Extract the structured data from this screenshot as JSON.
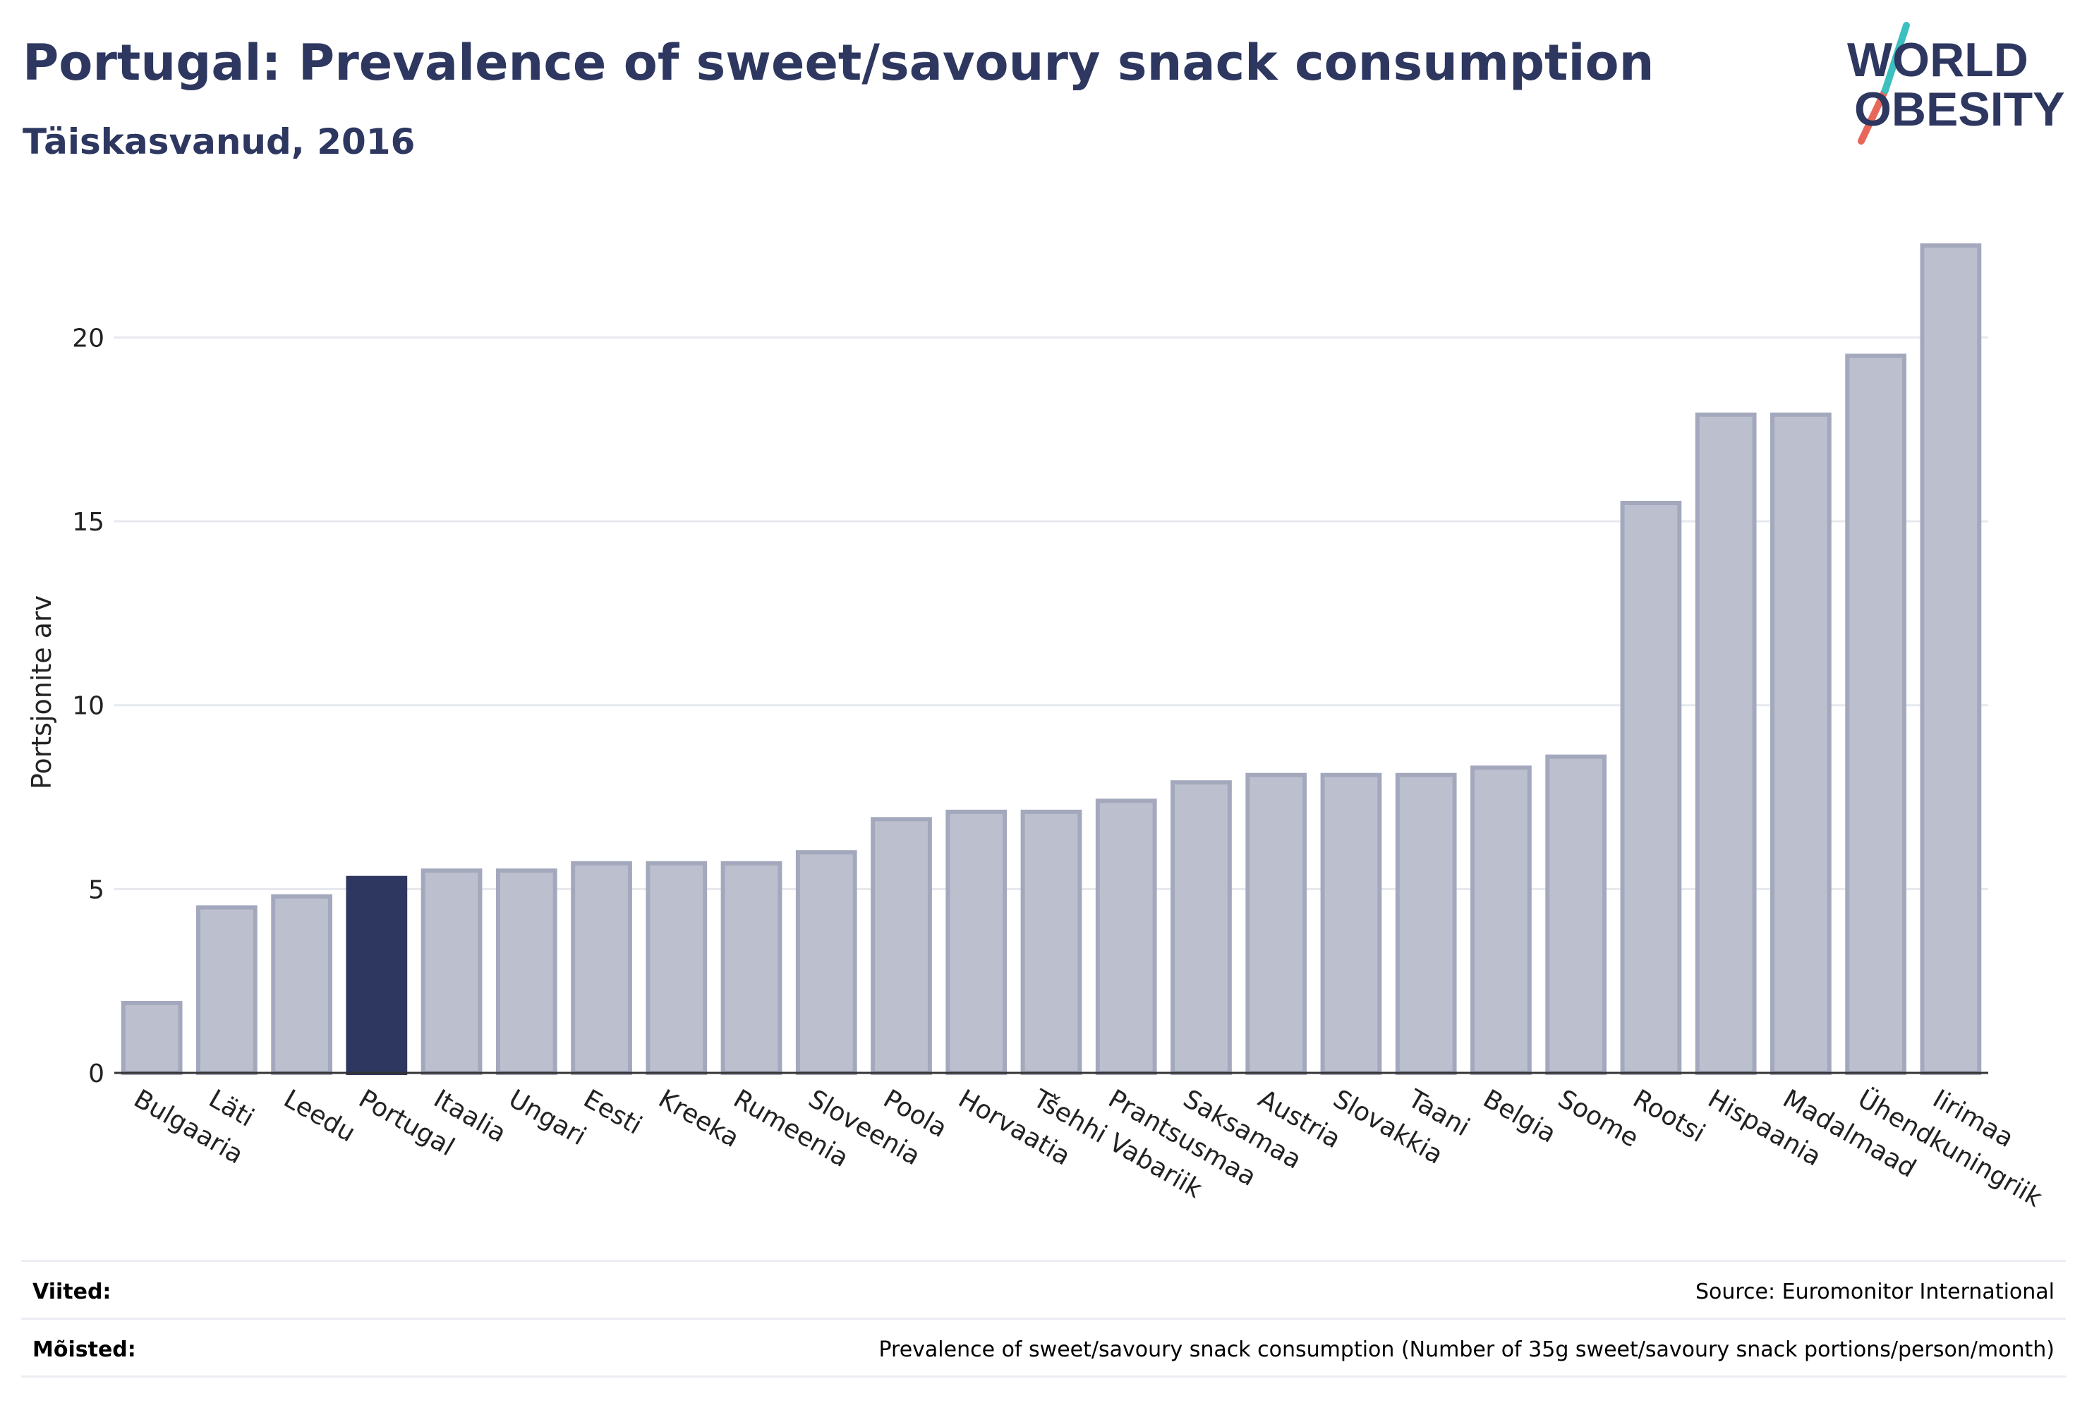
{
  "header": {
    "title": "Portugal: Prevalence of sweet/savoury snack consumption",
    "subtitle": "Täiskasvanud, 2016"
  },
  "logo": {
    "line1": "WORLD",
    "line2": "OBESITY",
    "text_color": "#2d3760",
    "slash_top_color": "#3cbfbf",
    "slash_bottom_color": "#e8675a"
  },
  "chart_data": {
    "type": "bar",
    "title": "Portugal: Prevalence of sweet/savoury snack consumption",
    "subtitle": "Täiskasvanud, 2016",
    "ylabel": "Portsjonite arv",
    "xlabel": "",
    "ylim": [
      0,
      23
    ],
    "yticks": [
      0,
      5,
      10,
      15,
      20
    ],
    "grid": true,
    "highlight": "Portugal",
    "colors": {
      "default": "#bcc0ce",
      "default_border": "#a3a8bd",
      "highlight": "#2d3760"
    },
    "categories": [
      "Bulgaaria",
      "Läti",
      "Leedu",
      "Portugal",
      "Itaalia",
      "Ungari",
      "Eesti",
      "Kreeka",
      "Rumeenia",
      "Sloveenia",
      "Poola",
      "Horvaatia",
      "Tšehhi Vabariik",
      "Prantsusmaa",
      "Saksamaa",
      "Austria",
      "Slovakkia",
      "Taani",
      "Belgia",
      "Soome",
      "Rootsi",
      "Hispaania",
      "Madalmaad",
      "Ühendkuningriik",
      "Iirimaa"
    ],
    "values": [
      1.9,
      4.5,
      4.8,
      5.3,
      5.5,
      5.5,
      5.7,
      5.7,
      5.7,
      6.0,
      6.9,
      7.1,
      7.1,
      7.4,
      7.9,
      8.1,
      8.1,
      8.1,
      8.3,
      8.6,
      15.5,
      17.9,
      17.9,
      19.5,
      22.5
    ]
  },
  "footer": {
    "references_label": "Viited:",
    "references_value": "Source: Euromonitor International",
    "definitions_label": "Mõisted:",
    "definitions_value": "Prevalence of sweet/savoury snack consumption (Number of 35g sweet/savoury snack portions/person/month)"
  }
}
